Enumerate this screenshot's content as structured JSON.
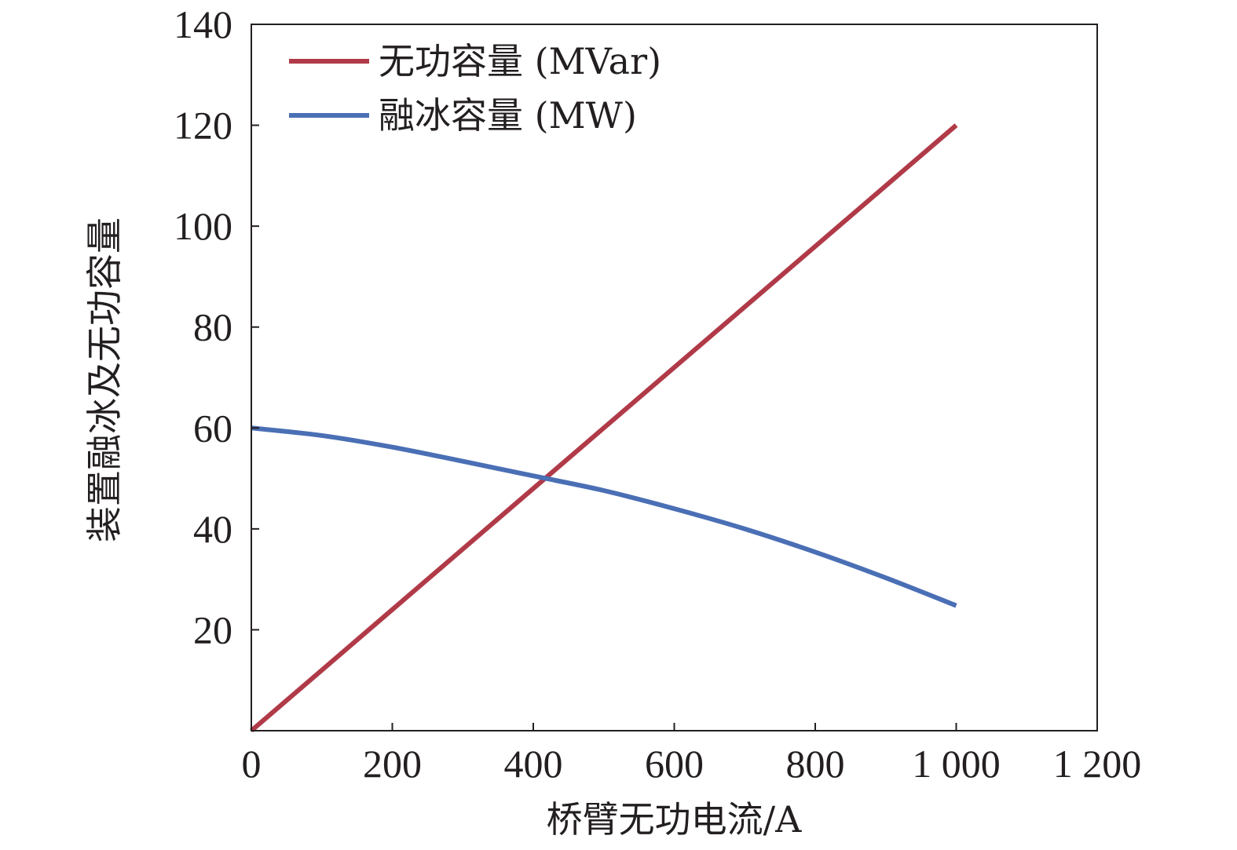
{
  "chart_data": {
    "type": "line",
    "xlabel": "桥臂无功电流/A",
    "ylabel": "装置融冰及无功容量",
    "xlim": [
      0,
      1200
    ],
    "ylim": [
      0,
      140
    ],
    "x_ticks": [
      0,
      200,
      400,
      600,
      800,
      1000,
      1200
    ],
    "x_tick_labels": [
      "0",
      "200",
      "400",
      "600",
      "800",
      "1 000",
      "1 200"
    ],
    "y_ticks": [
      20,
      40,
      60,
      80,
      100,
      120,
      140
    ],
    "y_tick_labels": [
      "20",
      "40",
      "60",
      "80",
      "100",
      "120",
      "140"
    ],
    "grid": false,
    "legend_position": "top-left",
    "series": [
      {
        "name": "无功容量 (MVar)",
        "color": "#b03a48",
        "x": [
          0,
          200,
          400,
          600,
          800,
          1000
        ],
        "y": [
          0,
          24,
          48,
          72,
          96,
          120
        ]
      },
      {
        "name": "融冰容量 (MW)",
        "color": "#4a6fb5",
        "x": [
          0,
          100,
          200,
          300,
          400,
          500,
          600,
          700,
          800,
          900,
          1000
        ],
        "y": [
          60,
          58.5,
          56.2,
          53.4,
          50.5,
          47.6,
          44.0,
          40.0,
          35.4,
          30.3,
          24.8
        ]
      }
    ]
  }
}
